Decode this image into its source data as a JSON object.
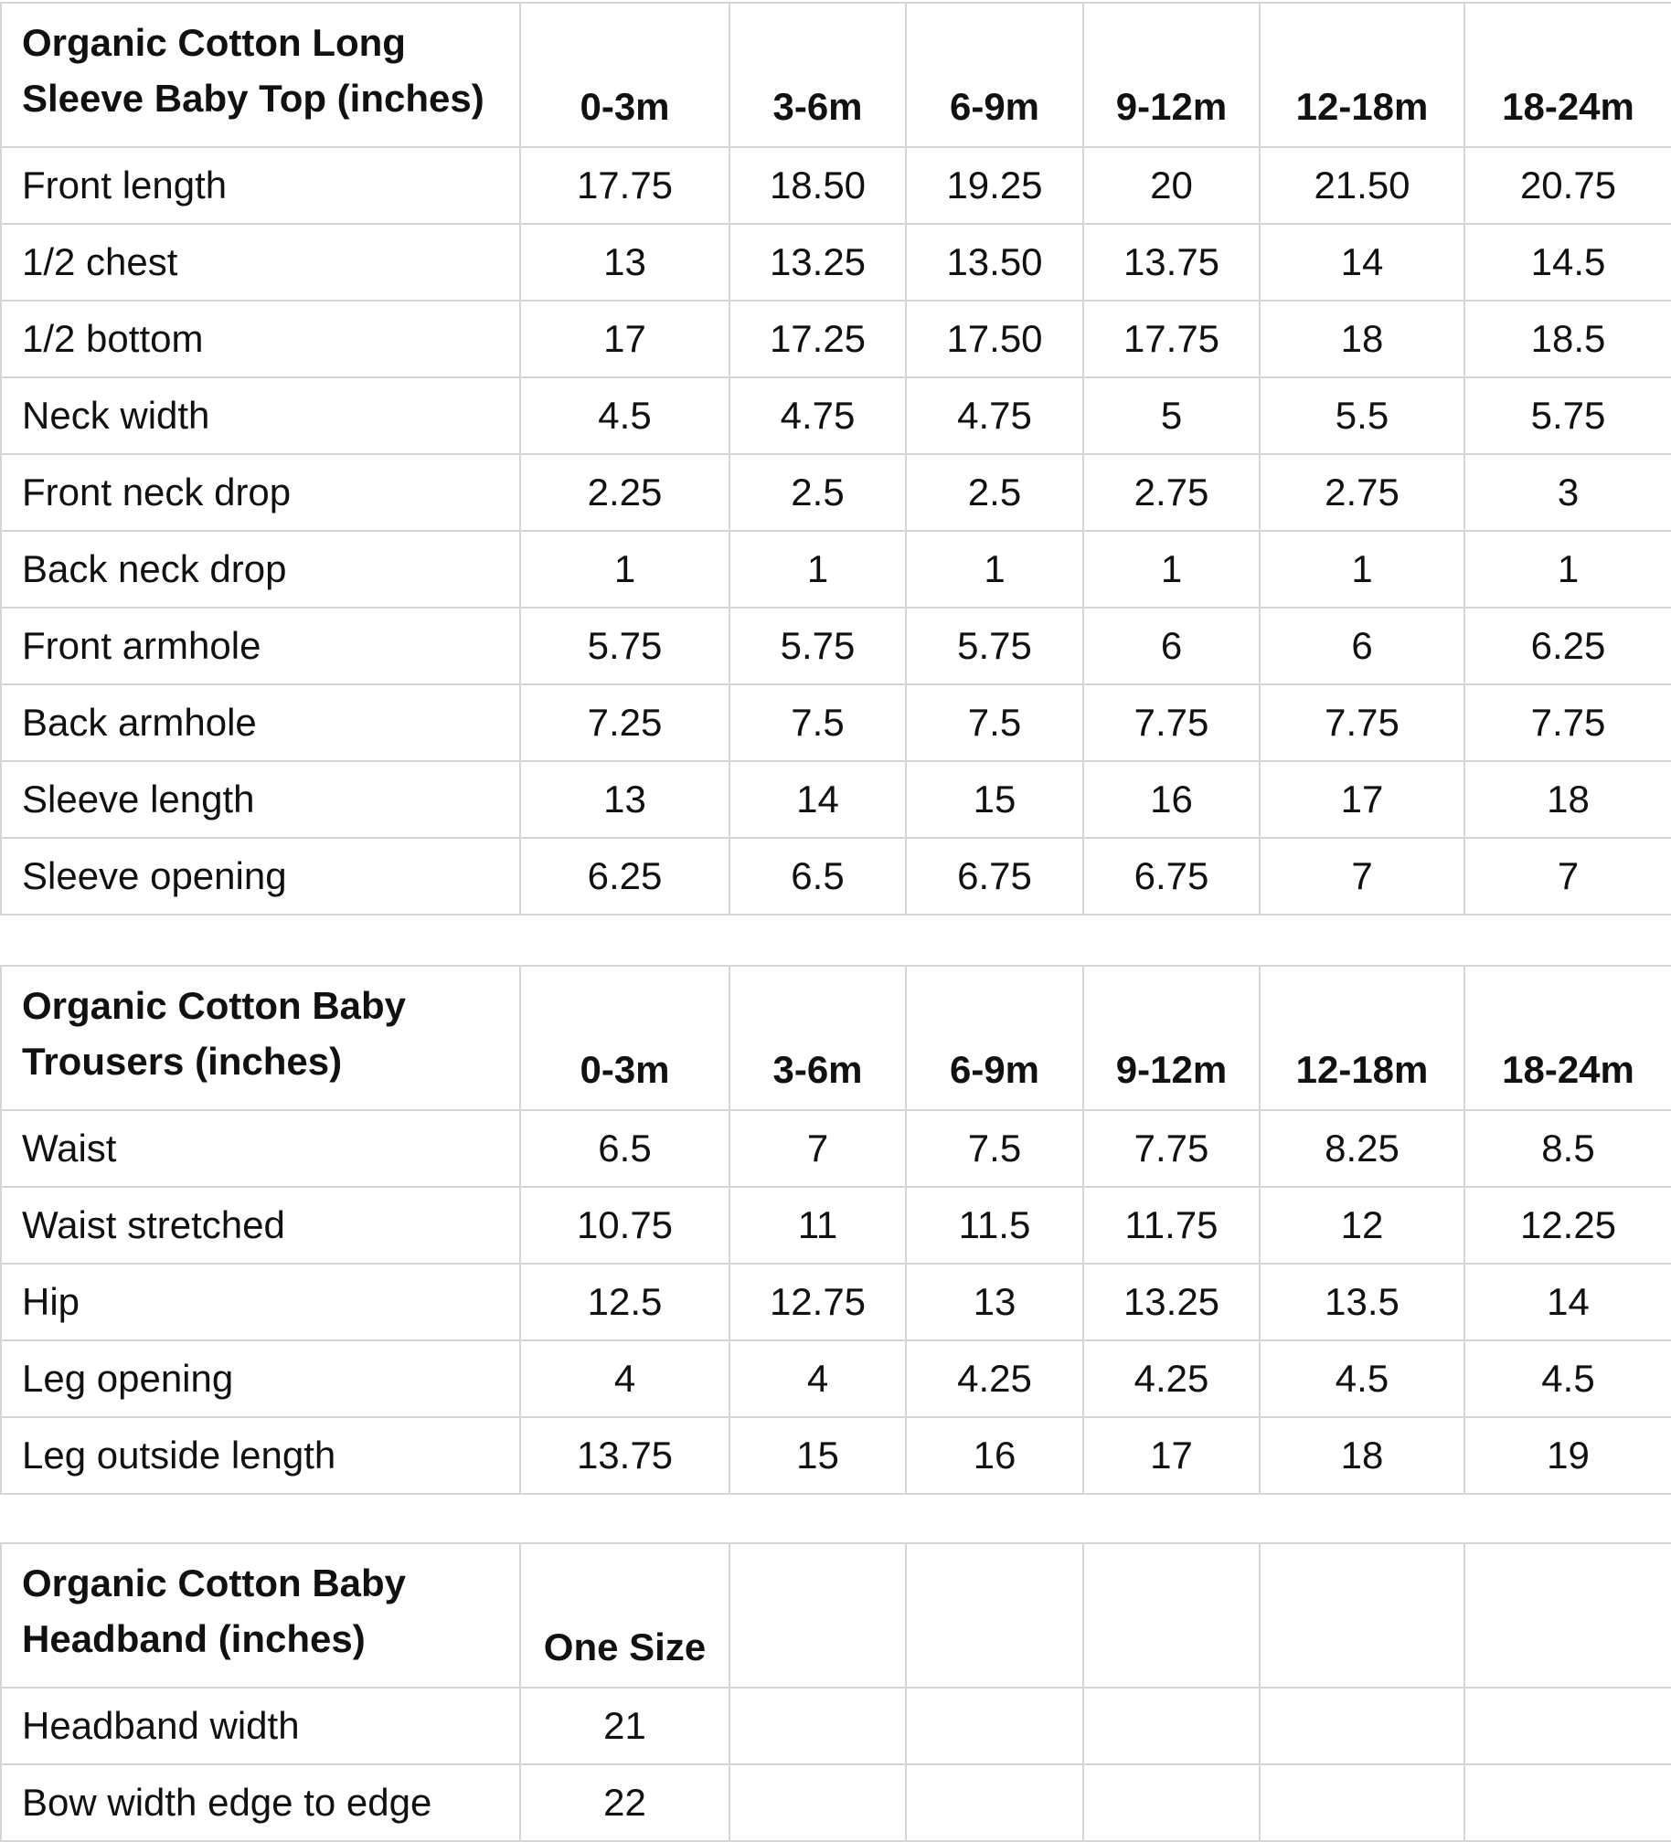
{
  "tables": [
    {
      "title": "Organic Cotton Long Sleeve Baby Top (inches)",
      "columns": [
        "0-3m",
        "3-6m",
        "6-9m",
        "9-12m",
        "12-18m",
        "18-24m"
      ],
      "rows": [
        {
          "label": "Front length",
          "values": [
            "17.75",
            "18.50",
            "19.25",
            "20",
            "21.50",
            "20.75"
          ]
        },
        {
          "label": "1/2 chest",
          "values": [
            "13",
            "13.25",
            "13.50",
            "13.75",
            "14",
            "14.5"
          ]
        },
        {
          "label": "1/2 bottom",
          "values": [
            "17",
            "17.25",
            "17.50",
            "17.75",
            "18",
            "18.5"
          ]
        },
        {
          "label": "Neck width",
          "values": [
            "4.5",
            "4.75",
            "4.75",
            "5",
            "5.5",
            "5.75"
          ]
        },
        {
          "label": "Front neck drop",
          "values": [
            "2.25",
            "2.5",
            "2.5",
            "2.75",
            "2.75",
            "3"
          ]
        },
        {
          "label": "Back neck drop",
          "values": [
            "1",
            "1",
            "1",
            "1",
            "1",
            "1"
          ]
        },
        {
          "label": "Front armhole",
          "values": [
            "5.75",
            "5.75",
            "5.75",
            "6",
            "6",
            "6.25"
          ]
        },
        {
          "label": "Back armhole",
          "values": [
            "7.25",
            "7.5",
            "7.5",
            "7.75",
            "7.75",
            "7.75"
          ]
        },
        {
          "label": "Sleeve length",
          "values": [
            "13",
            "14",
            "15",
            "16",
            "17",
            "18"
          ]
        },
        {
          "label": "Sleeve opening",
          "values": [
            "6.25",
            "6.5",
            "6.75",
            "6.75",
            "7",
            "7"
          ]
        }
      ]
    },
    {
      "title": "Organic Cotton Baby Trousers (inches)",
      "columns": [
        "0-3m",
        "3-6m",
        "6-9m",
        "9-12m",
        "12-18m",
        "18-24m"
      ],
      "rows": [
        {
          "label": "Waist",
          "values": [
            "6.5",
            "7",
            "7.5",
            "7.75",
            "8.25",
            "8.5"
          ]
        },
        {
          "label": "Waist stretched",
          "values": [
            "10.75",
            "11",
            "11.5",
            "11.75",
            "12",
            "12.25"
          ]
        },
        {
          "label": "Hip",
          "values": [
            "12.5",
            "12.75",
            "13",
            "13.25",
            "13.5",
            "14"
          ]
        },
        {
          "label": "Leg opening",
          "values": [
            "4",
            "4",
            "4.25",
            "4.25",
            "4.5",
            "4.5"
          ]
        },
        {
          "label": "Leg outside length",
          "values": [
            "13.75",
            "15",
            "16",
            "17",
            "18",
            "19"
          ]
        }
      ]
    },
    {
      "title": "Organic Cotton Baby Headband (inches)",
      "columns": [
        "One Size",
        "",
        "",
        "",
        "",
        ""
      ],
      "rows": [
        {
          "label": "Headband width",
          "values": [
            "21",
            "",
            "",
            "",
            "",
            ""
          ]
        },
        {
          "label": "Bow width edge to edge",
          "values": [
            "22",
            "",
            "",
            "",
            "",
            ""
          ]
        }
      ]
    }
  ]
}
